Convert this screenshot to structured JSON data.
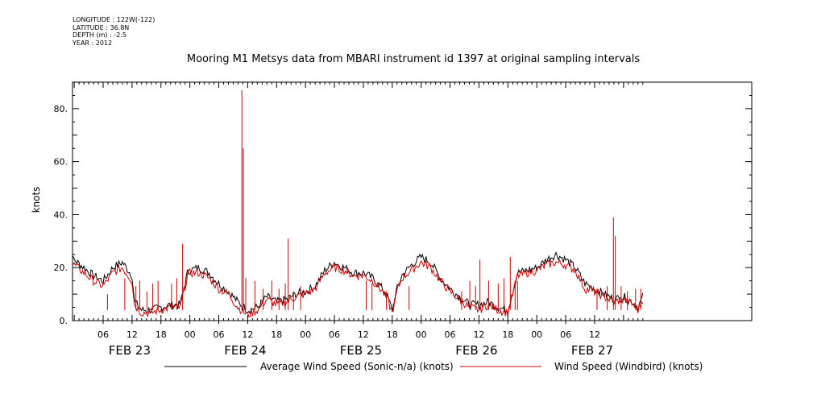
{
  "header": {
    "longitude": "LONGITUDE : 122W(-122)",
    "latitude": "LATITUDE : 36.8N",
    "depth": "DEPTH (m) : -2.5",
    "year": "YEAR : 2012"
  },
  "chart_data": {
    "type": "line",
    "title": "Mooring M1 Metsys data from MBARI instrument id 1397 at original sampling intervals",
    "ylabel": "knots",
    "xlabel": "",
    "ylim": [
      0,
      90
    ],
    "yticks": [
      0,
      20,
      40,
      60,
      80
    ],
    "ytick_labels": [
      "0.",
      "20.",
      "40.",
      "60.",
      "80."
    ],
    "x_unit": "hours since FEB 23 00:00",
    "xlim": [
      0,
      131
    ],
    "hour_ticks": [
      {
        "x": 6,
        "label": "06"
      },
      {
        "x": 12,
        "label": "12"
      },
      {
        "x": 18,
        "label": "18"
      },
      {
        "x": 24,
        "label": "00"
      },
      {
        "x": 30,
        "label": "06"
      },
      {
        "x": 36,
        "label": "12"
      },
      {
        "x": 42,
        "label": "18"
      },
      {
        "x": 48,
        "label": "00"
      },
      {
        "x": 54,
        "label": "06"
      },
      {
        "x": 60,
        "label": "12"
      },
      {
        "x": 66,
        "label": "18"
      },
      {
        "x": 72,
        "label": "00"
      },
      {
        "x": 78,
        "label": "06"
      },
      {
        "x": 84,
        "label": "12"
      },
      {
        "x": 90,
        "label": "18"
      },
      {
        "x": 96,
        "label": "00"
      },
      {
        "x": 102,
        "label": "06"
      },
      {
        "x": 108,
        "label": "12"
      }
    ],
    "day_labels": [
      {
        "x": 12,
        "label": "FEB 23"
      },
      {
        "x": 36,
        "label": "FEB 24"
      },
      {
        "x": 60,
        "label": "FEB 25"
      },
      {
        "x": 84,
        "label": "FEB 26"
      },
      {
        "x": 108,
        "label": "FEB 27"
      }
    ],
    "series": [
      {
        "name": "Average Wind Speed (Sonic-n/a) (knots)",
        "color": "#000000",
        "x": [
          -2,
          0,
          2,
          4,
          6,
          8,
          10,
          12,
          12.5,
          14,
          16,
          18,
          20,
          22,
          23.5,
          24,
          26,
          28,
          30,
          32,
          34,
          36,
          38,
          40,
          42,
          44,
          46,
          48,
          50,
          52,
          54,
          56,
          58,
          60,
          62,
          64,
          65,
          66,
          67,
          68,
          70,
          72,
          74,
          76,
          78,
          80,
          82,
          84,
          86,
          88,
          90,
          92,
          94,
          96,
          98,
          100,
          102,
          104,
          106,
          108,
          110,
          112,
          114,
          116,
          117,
          118
        ],
        "y": [
          24,
          23,
          20,
          17,
          15,
          20,
          22,
          17,
          7,
          4,
          4,
          5,
          6,
          6,
          18,
          19,
          20,
          18,
          14,
          11,
          7,
          4,
          5,
          9,
          7,
          8,
          10,
          11,
          13,
          19,
          22,
          20,
          18,
          18,
          16,
          12,
          9,
          4,
          12,
          17,
          21,
          24,
          22,
          16,
          12,
          9,
          6,
          6,
          7,
          5,
          4,
          18,
          19,
          20,
          23,
          25,
          23,
          20,
          14,
          12,
          10,
          8,
          9,
          7,
          5,
          9
        ]
      },
      {
        "name": "Wind Speed (Windbird) (knots)",
        "color": "#cc0000",
        "x": [
          -2,
          0,
          2,
          4,
          6,
          8,
          10,
          12,
          12.5,
          14,
          16,
          18,
          20,
          22,
          23.5,
          24,
          26,
          28,
          30,
          32,
          34,
          36,
          38,
          40,
          42,
          44,
          46,
          48,
          50,
          52,
          54,
          56,
          58,
          60,
          62,
          64,
          65,
          66,
          67,
          68,
          70,
          72,
          74,
          76,
          78,
          80,
          82,
          84,
          86,
          88,
          90,
          92,
          94,
          96,
          98,
          100,
          102,
          104,
          106,
          108,
          110,
          112,
          114,
          116,
          117,
          118
        ],
        "y": [
          22,
          21,
          18,
          15,
          13,
          18,
          20,
          15,
          6,
          3,
          3,
          4,
          5,
          5,
          17,
          18,
          18,
          16,
          12,
          10,
          5,
          2,
          4,
          8,
          6,
          7,
          9,
          10,
          12,
          18,
          20,
          19,
          17,
          17,
          15,
          11,
          8,
          3,
          11,
          16,
          19,
          22,
          20,
          15,
          11,
          8,
          5,
          4,
          6,
          4,
          3,
          17,
          18,
          19,
          21,
          22,
          21,
          19,
          12,
          11,
          9,
          7,
          8,
          6,
          4,
          8
        ],
        "spikes": [
          {
            "x": 6.9,
            "y": 10
          },
          {
            "x": 10.5,
            "y": 16
          },
          {
            "x": 12.8,
            "y": 13
          },
          {
            "x": 13.6,
            "y": 15
          },
          {
            "x": 15.1,
            "y": 11
          },
          {
            "x": 16.3,
            "y": 14
          },
          {
            "x": 17.4,
            "y": 15
          },
          {
            "x": 20.2,
            "y": 14
          },
          {
            "x": 21.3,
            "y": 16
          },
          {
            "x": 22.5,
            "y": 29
          },
          {
            "x": 34.8,
            "y": 87
          },
          {
            "x": 35.1,
            "y": 65
          },
          {
            "x": 35.6,
            "y": 16
          },
          {
            "x": 37.5,
            "y": 15
          },
          {
            "x": 39.2,
            "y": 12
          },
          {
            "x": 41.0,
            "y": 15
          },
          {
            "x": 42.5,
            "y": 12
          },
          {
            "x": 43.8,
            "y": 14
          },
          {
            "x": 44.4,
            "y": 31
          },
          {
            "x": 45.5,
            "y": 11
          },
          {
            "x": 47.0,
            "y": 13
          },
          {
            "x": 60.6,
            "y": 15
          },
          {
            "x": 61.8,
            "y": 14
          },
          {
            "x": 64.8,
            "y": 11
          },
          {
            "x": 69.5,
            "y": 13
          },
          {
            "x": 80.4,
            "y": 11
          },
          {
            "x": 82.1,
            "y": 15
          },
          {
            "x": 83.3,
            "y": 13
          },
          {
            "x": 84.2,
            "y": 23
          },
          {
            "x": 86.0,
            "y": 15
          },
          {
            "x": 88.0,
            "y": 14
          },
          {
            "x": 89.2,
            "y": 16
          },
          {
            "x": 90.5,
            "y": 24
          },
          {
            "x": 91.5,
            "y": 15
          },
          {
            "x": 92.0,
            "y": 15
          },
          {
            "x": 108.5,
            "y": 12
          },
          {
            "x": 110.6,
            "y": 13
          },
          {
            "x": 111.9,
            "y": 39
          },
          {
            "x": 112.3,
            "y": 32
          },
          {
            "x": 113.5,
            "y": 13
          },
          {
            "x": 114.8,
            "y": 11
          },
          {
            "x": 116.5,
            "y": 12
          },
          {
            "x": 117.6,
            "y": 12
          }
        ]
      }
    ]
  }
}
